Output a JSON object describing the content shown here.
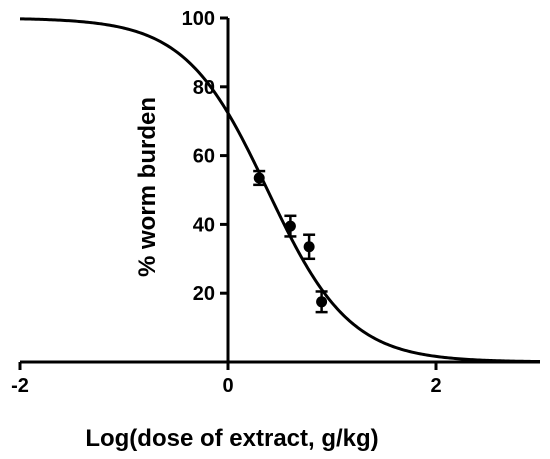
{
  "chart_data": {
    "type": "scatter",
    "title": "",
    "xlabel": "Log(dose of extract, g/kg)",
    "ylabel": "% worm burden",
    "xlim": [
      -2,
      3
    ],
    "ylim": [
      0,
      100
    ],
    "x_ticks": [
      -2,
      0,
      2
    ],
    "y_ticks": [
      20,
      40,
      60,
      80,
      100
    ],
    "x_tick_labels": [
      "-2",
      "0",
      "2"
    ],
    "y_tick_labels": [
      "20",
      "40",
      "60",
      "80",
      "100"
    ],
    "grid": false,
    "points": [
      {
        "x": 0.3,
        "y": 53.5,
        "err": 2
      },
      {
        "x": 0.6,
        "y": 39.5,
        "err": 3
      },
      {
        "x": 0.78,
        "y": 33.5,
        "err": 3.5
      },
      {
        "x": 0.9,
        "y": 17.5,
        "err": 3
      }
    ],
    "fit_curve": {
      "model": "sigmoidal dose-response",
      "top": 100,
      "bottom": 0,
      "logEC50": 0.38,
      "hill_slope": -1.1
    },
    "colors": {
      "marker": "#000000",
      "line": "#000000"
    }
  }
}
